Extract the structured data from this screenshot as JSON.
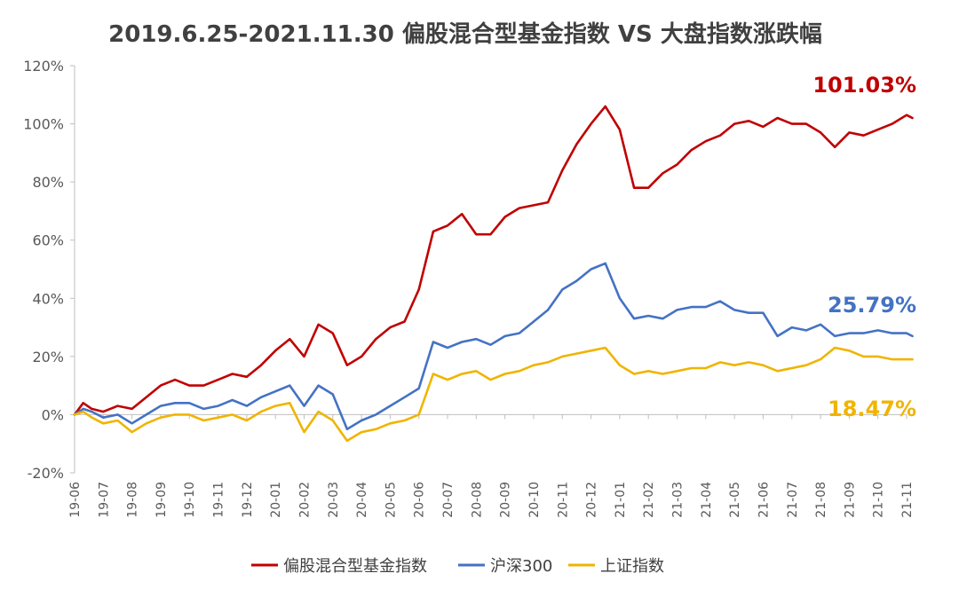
{
  "chart_data": {
    "type": "line",
    "title": "2019.6.25-2021.11.30  偏股混合型基金指数 VS 大盘指数涨跌幅",
    "xlabel": "",
    "ylabel": "",
    "ylim": [
      -20,
      120
    ],
    "yticks": [
      -20,
      0,
      20,
      40,
      60,
      80,
      100,
      120
    ],
    "ytick_labels": [
      "-20%",
      "0%",
      "20%",
      "40%",
      "60%",
      "80%",
      "100%",
      "120%"
    ],
    "x_tick_labels": [
      "19-06",
      "19-07",
      "19-08",
      "19-09",
      "19-10",
      "19-11",
      "19-12",
      "20-01",
      "20-02",
      "20-03",
      "20-04",
      "20-05",
      "20-06",
      "20-07",
      "20-08",
      "20-09",
      "20-10",
      "20-11",
      "20-12",
      "21-01",
      "21-02",
      "21-03",
      "21-04",
      "21-05",
      "21-06",
      "21-07",
      "21-08",
      "21-09",
      "21-10",
      "21-11"
    ],
    "x": [
      0,
      0.3,
      0.6,
      1,
      1.5,
      2,
      2.5,
      3,
      3.5,
      4,
      4.5,
      5,
      5.5,
      6,
      6.5,
      7,
      7.5,
      8,
      8.5,
      9,
      9.5,
      10,
      10.5,
      11,
      11.5,
      12,
      12.5,
      13,
      13.5,
      14,
      14.5,
      15,
      15.5,
      16,
      16.5,
      17,
      17.5,
      18,
      18.5,
      19,
      19.5,
      20,
      20.5,
      21,
      21.5,
      22,
      22.5,
      23,
      23.5,
      24,
      24.5,
      25,
      25.5,
      26,
      26.5,
      27,
      27.5,
      28,
      28.5,
      29,
      29.2
    ],
    "grid": false,
    "legend_position": "bottom",
    "series": [
      {
        "name": "偏股混合型基金指数",
        "color": "#C00000",
        "values": [
          0,
          4,
          2,
          1,
          3,
          2,
          6,
          10,
          12,
          10,
          10,
          12,
          14,
          13,
          17,
          22,
          26,
          20,
          31,
          28,
          17,
          20,
          26,
          30,
          32,
          43,
          63,
          65,
          69,
          62,
          62,
          68,
          71,
          72,
          73,
          84,
          93,
          100,
          106,
          98,
          78,
          78,
          83,
          86,
          91,
          94,
          96,
          100,
          101,
          99,
          102,
          100,
          100,
          97,
          92,
          97,
          96,
          98,
          100,
          103,
          102
        ],
        "end_label": "101.03%"
      },
      {
        "name": "沪深300",
        "color": "#4472C4",
        "values": [
          0,
          2,
          1,
          -1,
          0,
          -3,
          0,
          3,
          4,
          4,
          2,
          3,
          5,
          3,
          6,
          8,
          10,
          3,
          10,
          7,
          -5,
          -2,
          0,
          3,
          6,
          9,
          25,
          23,
          25,
          26,
          24,
          27,
          28,
          32,
          36,
          43,
          46,
          50,
          52,
          40,
          33,
          34,
          33,
          36,
          37,
          37,
          39,
          36,
          35,
          35,
          27,
          30,
          29,
          31,
          27,
          28,
          28,
          29,
          28,
          28,
          27
        ],
        "end_label": "25.79%"
      },
      {
        "name": "上证指数",
        "color": "#F0B400",
        "values": [
          0,
          1,
          -1,
          -3,
          -2,
          -6,
          -3,
          -1,
          0,
          0,
          -2,
          -1,
          0,
          -2,
          1,
          3,
          4,
          -6,
          1,
          -2,
          -9,
          -6,
          -5,
          -3,
          -2,
          0,
          14,
          12,
          14,
          15,
          12,
          14,
          15,
          17,
          18,
          20,
          21,
          22,
          23,
          17,
          14,
          15,
          14,
          15,
          16,
          16,
          18,
          17,
          18,
          17,
          15,
          16,
          17,
          19,
          23,
          22,
          20,
          20,
          19,
          19,
          19
        ],
        "end_label": "18.47%"
      }
    ]
  }
}
